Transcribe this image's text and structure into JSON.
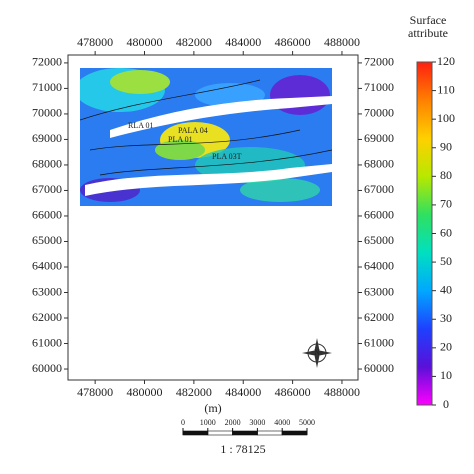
{
  "map": {
    "xlabel": "(m)",
    "xlim": [
      476900,
      488650
    ],
    "xticks": [
      478000,
      480000,
      482000,
      484000,
      486000,
      488000
    ],
    "ylim": [
      59570,
      72310
    ],
    "yticks": [
      60000,
      61000,
      62000,
      63000,
      64000,
      65000,
      66000,
      67000,
      68000,
      69000,
      70000,
      71000,
      72000
    ],
    "well_labels": [
      "RLA 01",
      "PALA 04",
      "PLA 01",
      "PLA 03T"
    ],
    "north": "N",
    "colorbar": {
      "title": "Surface attribute",
      "clim": [
        0,
        120
      ],
      "ticks": [
        0,
        10,
        20,
        30,
        40,
        50,
        60,
        70,
        80,
        90,
        100,
        110,
        120
      ],
      "colors": [
        "#ff00ff",
        "#5a10d8",
        "#1e40ff",
        "#00a8ff",
        "#00e0c0",
        "#30e060",
        "#b8e800",
        "#ffd000",
        "#ff8000",
        "#ff2010"
      ]
    },
    "scale_bar": {
      "ticks": [
        0,
        1000,
        2000,
        3000,
        4000,
        5000
      ],
      "scale": "1 : 78125"
    }
  }
}
